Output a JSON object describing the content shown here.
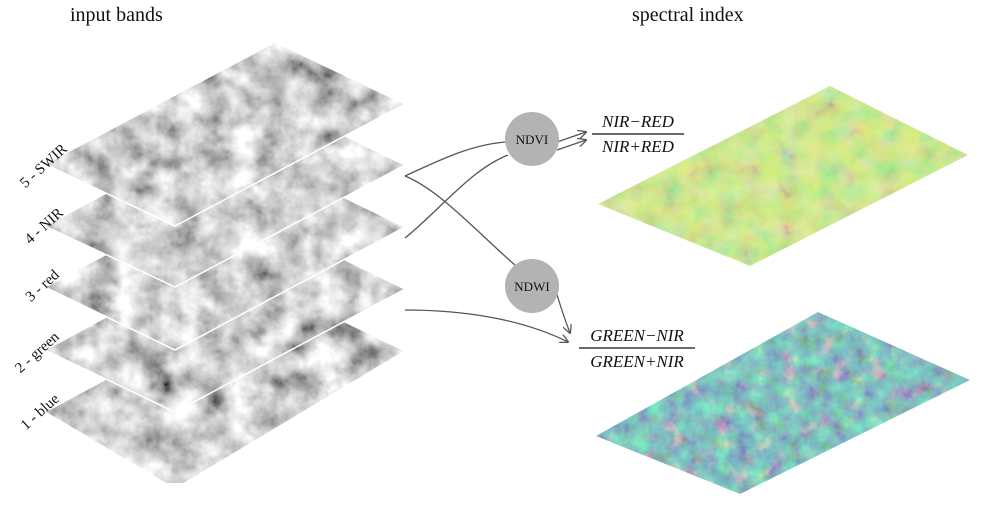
{
  "headings": {
    "input": "input bands",
    "output": "spectral index"
  },
  "bands": [
    {
      "label": "5 - SWIR"
    },
    {
      "label": "4 - NIR"
    },
    {
      "label": "3 - red"
    },
    {
      "label": "2 - green"
    },
    {
      "label": "1 - blue"
    }
  ],
  "indices": [
    {
      "name": "NDVI",
      "numerator": "NIR−RED",
      "denominator": "NIR+RED"
    },
    {
      "name": "NDWI",
      "numerator": "GREEN−NIR",
      "denominator": "GREEN+NIR"
    }
  ],
  "colors": {
    "node_fill": "#b3b3b3",
    "arrow": "#555555",
    "ndvi_map": "#8fd14f",
    "ndwi_map": "#2f6f8f"
  }
}
